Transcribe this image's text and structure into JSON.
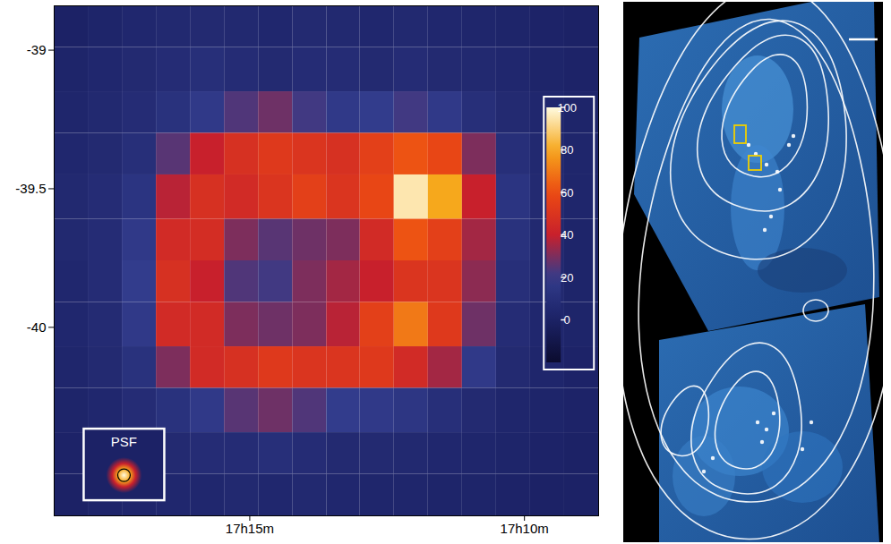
{
  "chart_data": {
    "type": "heatmap",
    "x_edges": [
      18.56,
      17.94,
      17.32,
      16.7,
      16.08,
      15.46,
      14.84,
      14.22,
      13.6,
      12.99,
      12.37,
      11.75,
      11.13,
      10.51,
      9.89,
      9.27,
      8.65
    ],
    "y_edges": [
      -38.84,
      -38.99,
      -39.15,
      -39.3,
      -39.45,
      -39.61,
      -39.76,
      -39.91,
      -40.07,
      -40.22,
      -40.38,
      -40.53,
      -40.68
    ],
    "values": [
      [
        0,
        2,
        4,
        5,
        6,
        5,
        4,
        6,
        5,
        4,
        5,
        4,
        3,
        2,
        1,
        0
      ],
      [
        2,
        4,
        6,
        8,
        10,
        8,
        6,
        8,
        8,
        6,
        8,
        6,
        5,
        4,
        2,
        1
      ],
      [
        3,
        5,
        8,
        12,
        18,
        24,
        28,
        22,
        18,
        20,
        22,
        18,
        10,
        6,
        4,
        2
      ],
      [
        4,
        6,
        10,
        25,
        40,
        48,
        52,
        50,
        48,
        55,
        62,
        58,
        30,
        10,
        5,
        3
      ],
      [
        5,
        8,
        14,
        38,
        48,
        45,
        50,
        55,
        50,
        58,
        95,
        80,
        40,
        14,
        6,
        3
      ],
      [
        5,
        8,
        18,
        45,
        46,
        30,
        25,
        28,
        30,
        45,
        62,
        55,
        35,
        12,
        5,
        2
      ],
      [
        4,
        8,
        20,
        48,
        40,
        24,
        22,
        30,
        35,
        40,
        50,
        50,
        32,
        10,
        5,
        2
      ],
      [
        4,
        7,
        18,
        45,
        45,
        30,
        28,
        30,
        38,
        55,
        70,
        52,
        28,
        8,
        4,
        2
      ],
      [
        3,
        6,
        12,
        30,
        45,
        48,
        52,
        50,
        50,
        52,
        45,
        35,
        18,
        6,
        3,
        1
      ],
      [
        2,
        4,
        8,
        12,
        18,
        25,
        28,
        24,
        20,
        18,
        15,
        10,
        6,
        3,
        2,
        1
      ],
      [
        1,
        3,
        5,
        6,
        8,
        8,
        10,
        8,
        6,
        6,
        5,
        4,
        3,
        2,
        1,
        0
      ],
      [
        0,
        2,
        3,
        4,
        4,
        5,
        4,
        5,
        4,
        3,
        3,
        2,
        2,
        1,
        0,
        0
      ]
    ],
    "xlim": [
      18.56,
      8.65
    ],
    "ylim": [
      -40.68,
      -38.84
    ],
    "xticks": [
      {
        "value": 15,
        "label": "17h15m"
      },
      {
        "value": 10,
        "label": "17h10m"
      }
    ],
    "yticks": [
      -39,
      -39.5,
      -40
    ],
    "colorbar": {
      "range": [
        -20,
        100
      ],
      "ticks": [
        0,
        20,
        40,
        60,
        80,
        100
      ]
    },
    "annotations": [
      "PSF"
    ]
  }
}
